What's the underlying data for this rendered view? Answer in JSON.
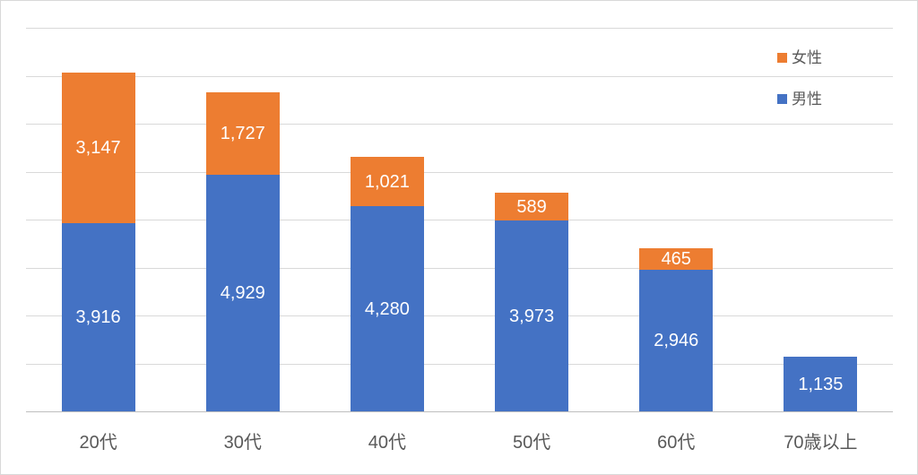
{
  "chart_data": {
    "type": "bar",
    "stacked": true,
    "orientation": "vertical",
    "categories": [
      "20代",
      "30代",
      "40代",
      "50代",
      "60代",
      "70歳以上"
    ],
    "series": [
      {
        "key": "male",
        "name": "男性",
        "color": "#4472C4",
        "values": [
          3916,
          4929,
          4280,
          3973,
          2946,
          1135
        ]
      },
      {
        "key": "female",
        "name": "女性",
        "color": "#ED7D31",
        "values": [
          3147,
          1727,
          1021,
          589,
          465,
          0
        ]
      }
    ],
    "data_labels": {
      "visible": true,
      "position": "inside-center",
      "color": "#FFFFFF",
      "format": "thousands-comma"
    },
    "title": "",
    "xlabel": "",
    "ylabel": "",
    "ylim": [
      0,
      8000
    ],
    "gridline_step": 1000,
    "grid": true,
    "y_tick_labels_visible": false,
    "legend_position": "top-right",
    "legend_order": [
      "女性",
      "男性"
    ]
  },
  "legend": {
    "items": [
      {
        "key": "female",
        "label": "女性",
        "color": "#ED7D31"
      },
      {
        "key": "male",
        "label": "男性",
        "color": "#4472C4"
      }
    ]
  },
  "colors": {
    "male_series": "#4472C4",
    "female_series": "#ED7D31",
    "gridline": "#D9D9D9",
    "axis_line": "#BFBFBF",
    "axis_text": "#595959",
    "data_label_text": "#FFFFFF",
    "chart_border": "#D9D9D9",
    "background": "#FFFFFF"
  }
}
